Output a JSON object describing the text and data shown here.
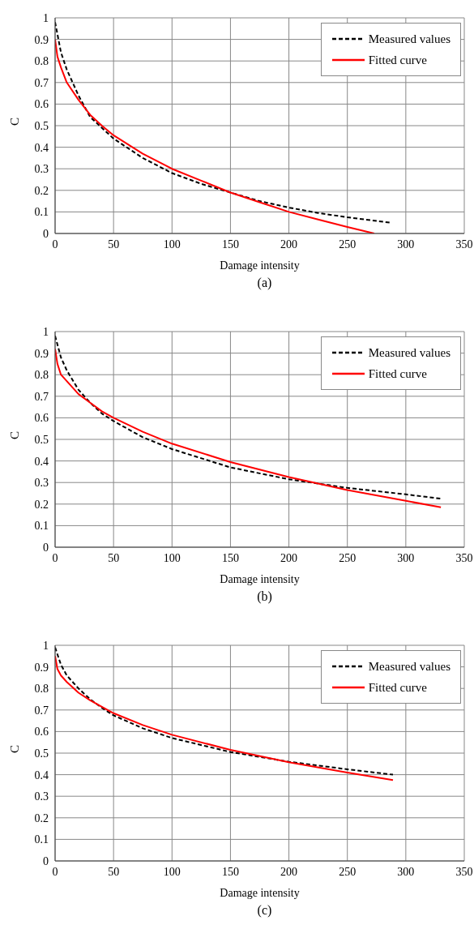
{
  "chart_data": [
    {
      "type": "line",
      "xlabel": "Damage intensity",
      "ylabel": "C",
      "annotations": [
        "(a)"
      ],
      "xlim": [
        0,
        350
      ],
      "xticks": [
        0,
        50,
        100,
        150,
        200,
        250,
        300,
        350
      ],
      "ylim": [
        0,
        1
      ],
      "yticks": [
        0,
        0.1,
        0.2,
        0.3,
        0.4,
        0.5,
        0.6,
        0.7,
        0.8,
        0.9,
        1
      ],
      "grid": true,
      "legend": "top right",
      "marker": "none",
      "series": [
        {
          "name": "Measured values",
          "color": "#000000",
          "line_style": "dashed",
          "x": [
            0,
            5,
            10,
            20,
            30,
            40,
            50,
            75,
            100,
            125,
            150,
            175,
            200,
            225,
            250,
            287
          ],
          "values": [
            0.98,
            0.84,
            0.76,
            0.64,
            0.54,
            0.49,
            0.44,
            0.35,
            0.28,
            0.23,
            0.19,
            0.15,
            0.12,
            0.095,
            0.075,
            0.05
          ]
        },
        {
          "name": "Fitted curve",
          "color": "#ff0000",
          "line_style": "solid",
          "x": [
            0,
            2,
            5,
            10,
            20,
            30,
            40,
            50,
            75,
            100,
            125,
            150,
            175,
            200,
            225,
            250,
            273
          ],
          "values": [
            0.9,
            0.82,
            0.77,
            0.7,
            0.62,
            0.55,
            0.5,
            0.455,
            0.37,
            0.3,
            0.245,
            0.19,
            0.145,
            0.1,
            0.065,
            0.03,
            0
          ]
        }
      ]
    },
    {
      "type": "line",
      "xlabel": "Damage intensity",
      "ylabel": "C",
      "annotations": [
        "(b)"
      ],
      "xlim": [
        0,
        350
      ],
      "xticks": [
        0,
        50,
        100,
        150,
        200,
        250,
        300,
        350
      ],
      "ylim": [
        0,
        1
      ],
      "yticks": [
        0,
        0.1,
        0.2,
        0.3,
        0.4,
        0.5,
        0.6,
        0.7,
        0.8,
        0.9,
        1
      ],
      "grid": true,
      "legend": "top right",
      "marker": "none",
      "series": [
        {
          "name": "Measured values",
          "color": "#000000",
          "line_style": "dashed",
          "x": [
            0,
            5,
            10,
            20,
            30,
            40,
            50,
            75,
            100,
            150,
            200,
            250,
            300,
            330
          ],
          "values": [
            0.98,
            0.88,
            0.82,
            0.73,
            0.67,
            0.62,
            0.585,
            0.51,
            0.455,
            0.37,
            0.315,
            0.275,
            0.245,
            0.225
          ]
        },
        {
          "name": "Fitted curve",
          "color": "#ff0000",
          "line_style": "solid",
          "x": [
            0,
            2,
            5,
            10,
            20,
            30,
            40,
            50,
            75,
            100,
            150,
            200,
            250,
            300,
            330
          ],
          "values": [
            0.92,
            0.85,
            0.8,
            0.77,
            0.71,
            0.67,
            0.63,
            0.6,
            0.535,
            0.48,
            0.395,
            0.325,
            0.265,
            0.215,
            0.185
          ]
        }
      ]
    },
    {
      "type": "line",
      "xlabel": "Damage intensity",
      "ylabel": "C",
      "annotations": [
        "(c)"
      ],
      "xlim": [
        0,
        350
      ],
      "xticks": [
        0,
        50,
        100,
        150,
        200,
        250,
        300,
        350
      ],
      "ylim": [
        0,
        1
      ],
      "yticks": [
        0,
        0.1,
        0.2,
        0.3,
        0.4,
        0.5,
        0.6,
        0.7,
        0.8,
        0.9,
        1
      ],
      "grid": true,
      "legend": "top right",
      "marker": "none",
      "series": [
        {
          "name": "Measured values",
          "color": "#000000",
          "line_style": "dashed",
          "x": [
            0,
            5,
            10,
            20,
            30,
            40,
            50,
            75,
            100,
            150,
            200,
            250,
            289
          ],
          "values": [
            0.99,
            0.91,
            0.86,
            0.8,
            0.75,
            0.71,
            0.675,
            0.615,
            0.57,
            0.505,
            0.46,
            0.425,
            0.4
          ]
        },
        {
          "name": "Fitted curve",
          "color": "#ff0000",
          "line_style": "solid",
          "x": [
            0,
            2,
            5,
            10,
            20,
            30,
            40,
            50,
            75,
            100,
            150,
            200,
            250,
            289
          ],
          "values": [
            0.95,
            0.89,
            0.86,
            0.83,
            0.78,
            0.745,
            0.715,
            0.685,
            0.63,
            0.585,
            0.515,
            0.458,
            0.41,
            0.375
          ]
        }
      ]
    }
  ]
}
